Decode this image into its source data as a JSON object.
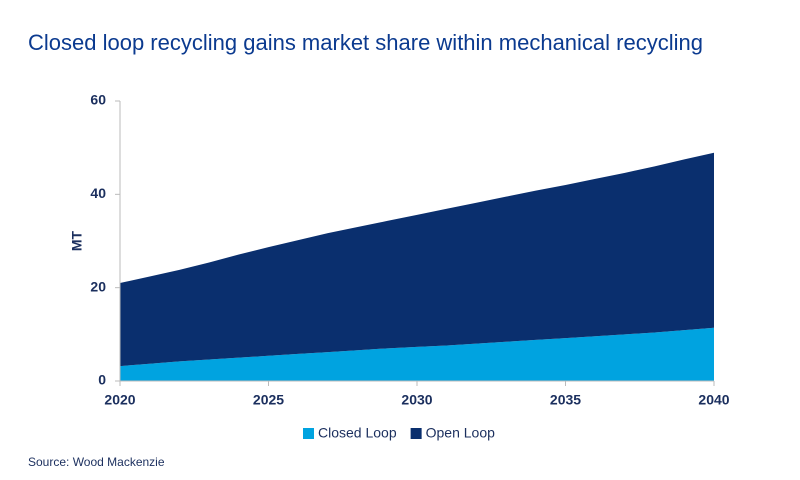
{
  "chart_data": {
    "type": "stacked_area",
    "title": "Closed loop recycling gains market share within mechanical recycling",
    "y_label": "MT",
    "source": "Source: Wood Mackenzie",
    "x": [
      2020,
      2021,
      2022,
      2023,
      2024,
      2025,
      2026,
      2027,
      2028,
      2029,
      2030,
      2031,
      2032,
      2033,
      2034,
      2035,
      2036,
      2037,
      2038,
      2039,
      2040
    ],
    "series": [
      {
        "name": "Closed Loop",
        "color": "#00a3e0",
        "values": [
          3.2,
          3.7,
          4.2,
          4.6,
          5.0,
          5.4,
          5.8,
          6.2,
          6.6,
          7.0,
          7.3,
          7.6,
          8.0,
          8.4,
          8.8,
          9.2,
          9.6,
          10.0,
          10.4,
          10.9,
          11.4
        ]
      },
      {
        "name": "Open Loop",
        "color": "#0a2f6e",
        "values": [
          17.8,
          18.7,
          19.6,
          20.8,
          22.1,
          23.3,
          24.4,
          25.5,
          26.4,
          27.3,
          28.3,
          29.3,
          30.2,
          31.1,
          32.0,
          32.8,
          33.7,
          34.6,
          35.6,
          36.6,
          37.5
        ]
      }
    ],
    "xlim": [
      2020,
      2040
    ],
    "xticks": [
      2020,
      2025,
      2030,
      2035,
      2040
    ],
    "ylim": [
      0,
      60
    ],
    "yticks": [
      0,
      20,
      40,
      60
    ],
    "legend": "bottom"
  }
}
